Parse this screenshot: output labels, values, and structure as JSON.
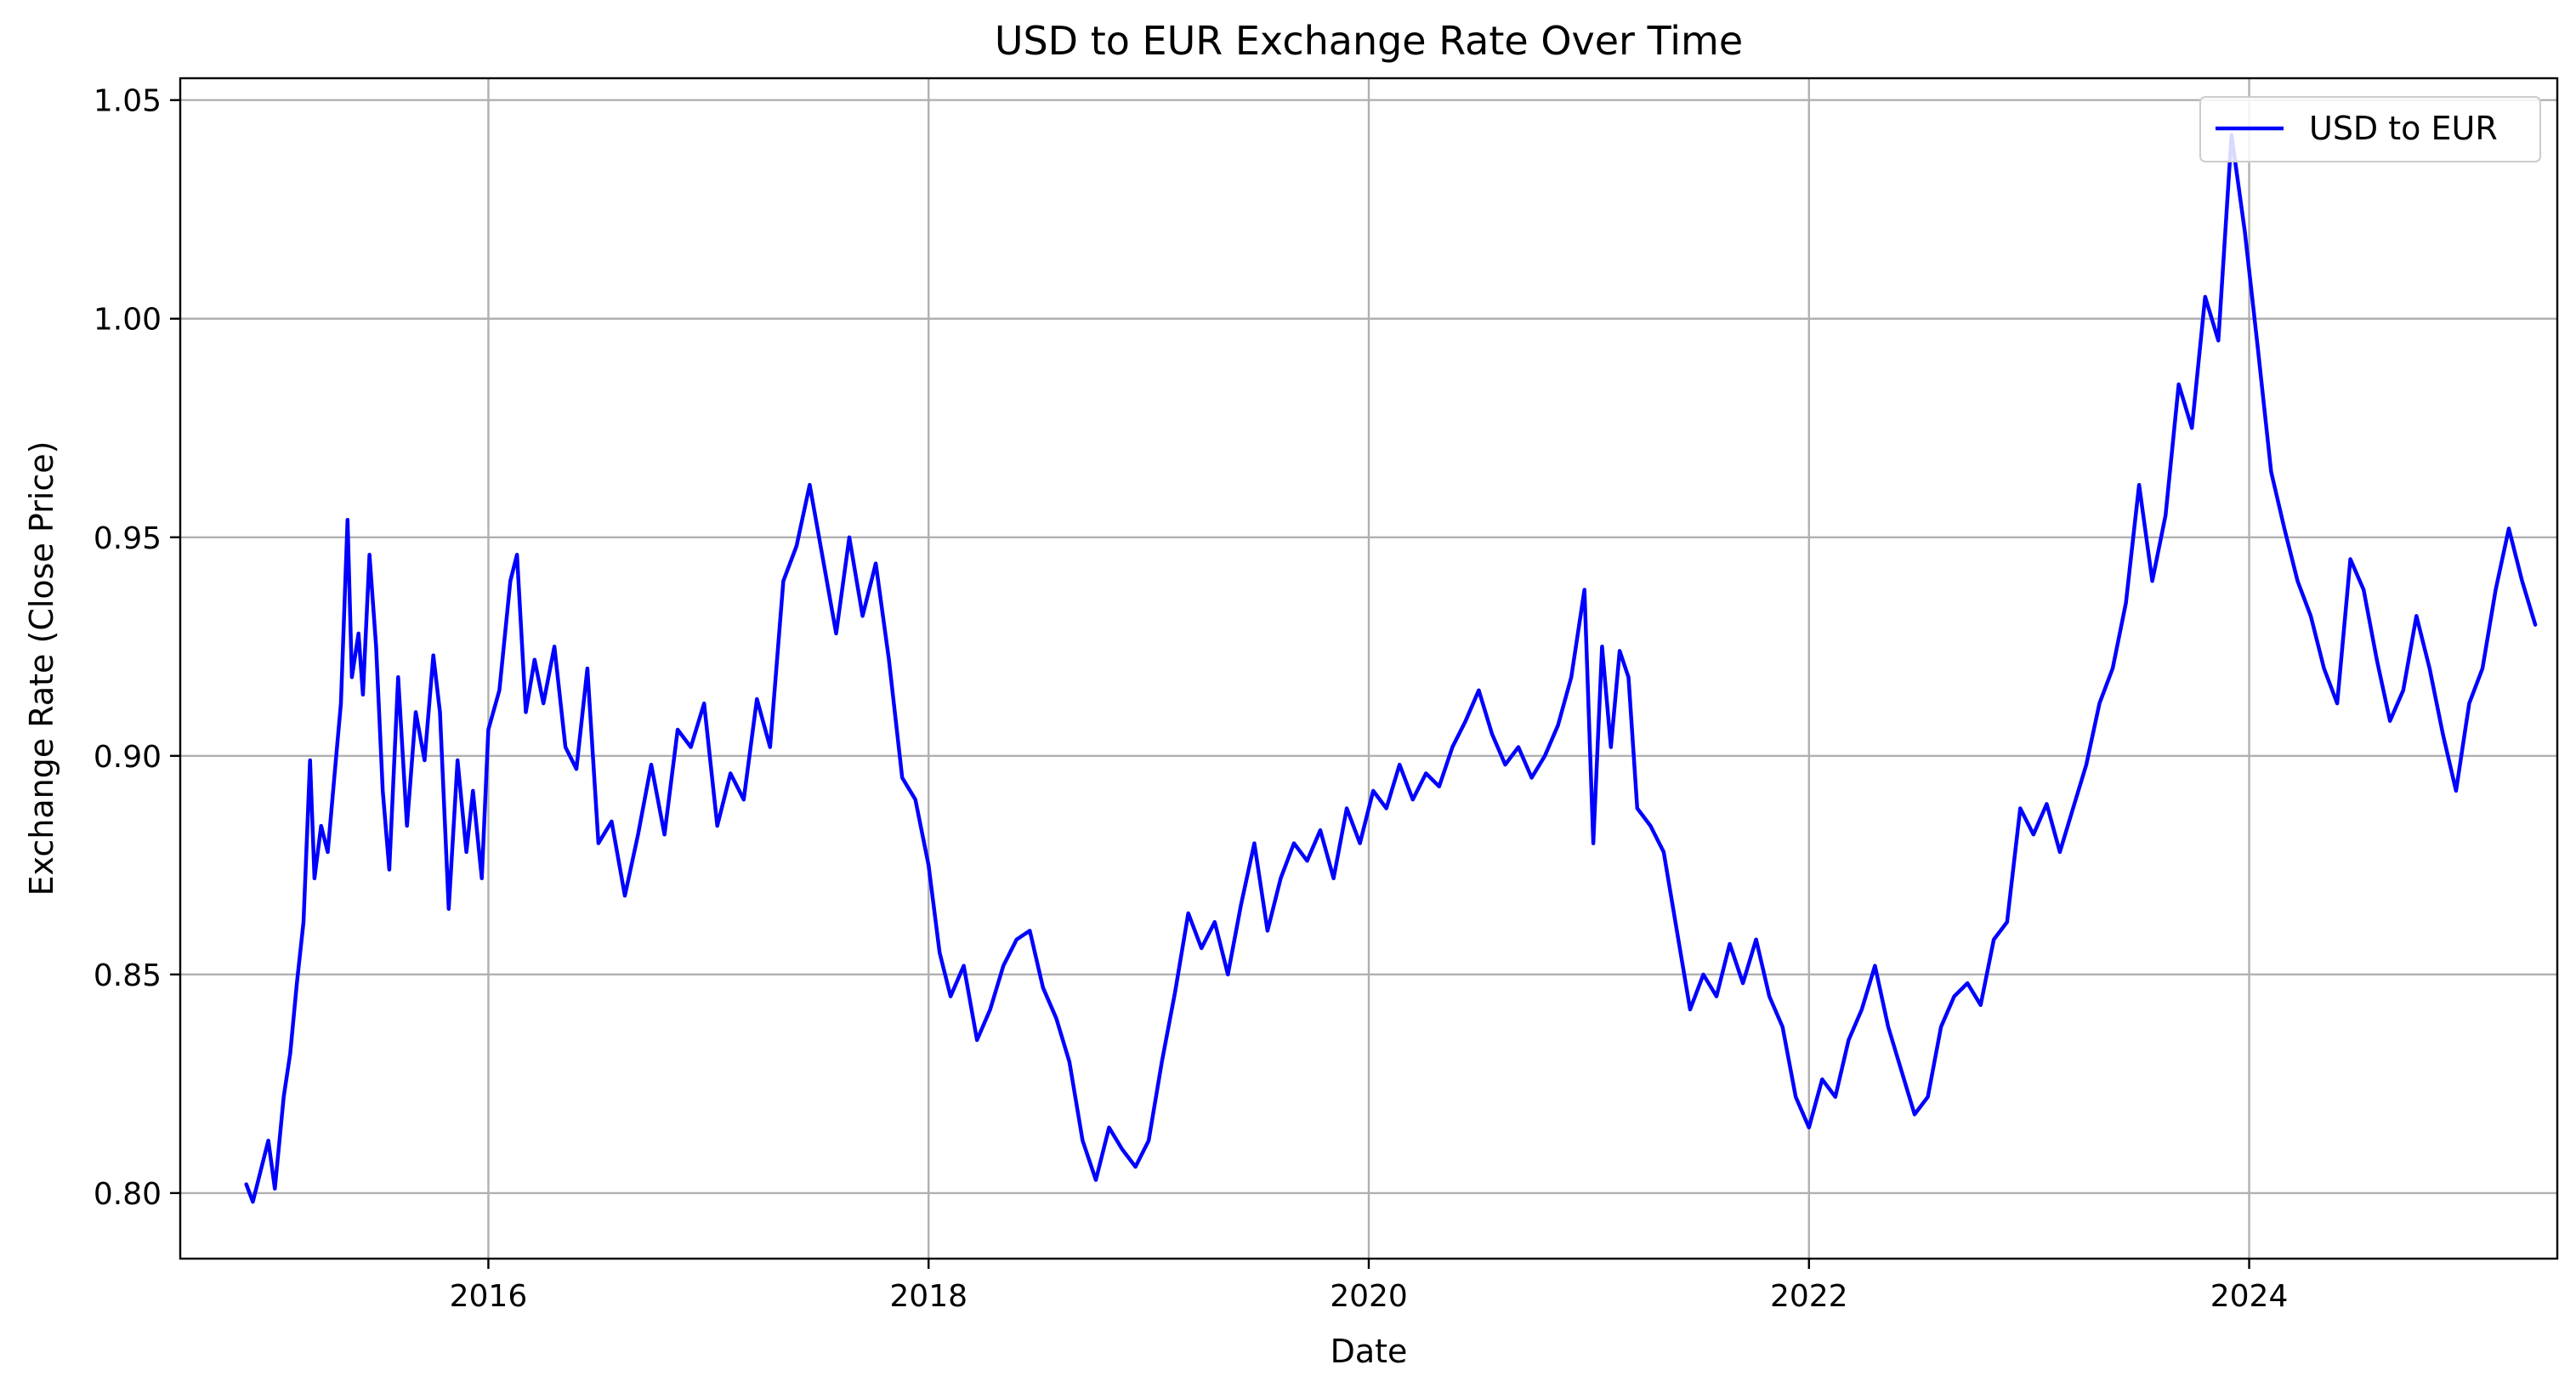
{
  "chart_data": {
    "type": "line",
    "title": "USD to EUR Exchange Rate Over Time",
    "xlabel": "Date",
    "ylabel": "Exchange Rate (Close Price)",
    "xlim": [
      2014.6,
      2025.4
    ],
    "ylim": [
      0.785,
      1.055
    ],
    "x_ticks": [
      2016,
      2018,
      2020,
      2022,
      2024
    ],
    "x_tick_labels": [
      "2016",
      "2018",
      "2020",
      "2022",
      "2024"
    ],
    "y_ticks": [
      0.8,
      0.85,
      0.9,
      0.95,
      1.0,
      1.05
    ],
    "y_tick_labels": [
      "0.80",
      "0.85",
      "0.90",
      "0.95",
      "1.00",
      "1.05"
    ],
    "grid": true,
    "legend": "top-right",
    "colors": {
      "line": "#0000ff"
    },
    "series": [
      {
        "name": "USD to EUR",
        "points": [
          [
            2014.9,
            0.802
          ],
          [
            2014.93,
            0.798
          ],
          [
            2014.97,
            0.806
          ],
          [
            2015.0,
            0.812
          ],
          [
            2015.03,
            0.801
          ],
          [
            2015.07,
            0.822
          ],
          [
            2015.1,
            0.832
          ],
          [
            2015.13,
            0.848
          ],
          [
            2015.16,
            0.862
          ],
          [
            2015.19,
            0.899
          ],
          [
            2015.21,
            0.872
          ],
          [
            2015.24,
            0.884
          ],
          [
            2015.27,
            0.878
          ],
          [
            2015.3,
            0.895
          ],
          [
            2015.33,
            0.912
          ],
          [
            2015.36,
            0.954
          ],
          [
            2015.38,
            0.918
          ],
          [
            2015.41,
            0.928
          ],
          [
            2015.43,
            0.914
          ],
          [
            2015.46,
            0.946
          ],
          [
            2015.49,
            0.925
          ],
          [
            2015.52,
            0.892
          ],
          [
            2015.55,
            0.874
          ],
          [
            2015.59,
            0.918
          ],
          [
            2015.63,
            0.884
          ],
          [
            2015.67,
            0.91
          ],
          [
            2015.71,
            0.899
          ],
          [
            2015.75,
            0.923
          ],
          [
            2015.78,
            0.91
          ],
          [
            2015.82,
            0.865
          ],
          [
            2015.86,
            0.899
          ],
          [
            2015.9,
            0.878
          ],
          [
            2015.93,
            0.892
          ],
          [
            2015.97,
            0.872
          ],
          [
            2016.0,
            0.906
          ],
          [
            2016.05,
            0.915
          ],
          [
            2016.1,
            0.94
          ],
          [
            2016.13,
            0.946
          ],
          [
            2016.17,
            0.91
          ],
          [
            2016.21,
            0.922
          ],
          [
            2016.25,
            0.912
          ],
          [
            2016.3,
            0.925
          ],
          [
            2016.35,
            0.902
          ],
          [
            2016.4,
            0.897
          ],
          [
            2016.45,
            0.92
          ],
          [
            2016.5,
            0.88
          ],
          [
            2016.56,
            0.885
          ],
          [
            2016.62,
            0.868
          ],
          [
            2016.68,
            0.882
          ],
          [
            2016.74,
            0.898
          ],
          [
            2016.8,
            0.882
          ],
          [
            2016.86,
            0.906
          ],
          [
            2016.92,
            0.902
          ],
          [
            2016.98,
            0.912
          ],
          [
            2017.04,
            0.884
          ],
          [
            2017.1,
            0.896
          ],
          [
            2017.16,
            0.89
          ],
          [
            2017.22,
            0.913
          ],
          [
            2017.28,
            0.902
          ],
          [
            2017.34,
            0.94
          ],
          [
            2017.4,
            0.948
          ],
          [
            2017.46,
            0.962
          ],
          [
            2017.52,
            0.945
          ],
          [
            2017.58,
            0.928
          ],
          [
            2017.64,
            0.95
          ],
          [
            2017.7,
            0.932
          ],
          [
            2017.76,
            0.944
          ],
          [
            2017.82,
            0.922
          ],
          [
            2017.88,
            0.895
          ],
          [
            2017.94,
            0.89
          ],
          [
            2018.0,
            0.875
          ],
          [
            2018.05,
            0.855
          ],
          [
            2018.1,
            0.845
          ],
          [
            2018.16,
            0.852
          ],
          [
            2018.22,
            0.835
          ],
          [
            2018.28,
            0.842
          ],
          [
            2018.34,
            0.852
          ],
          [
            2018.4,
            0.858
          ],
          [
            2018.46,
            0.86
          ],
          [
            2018.52,
            0.847
          ],
          [
            2018.58,
            0.84
          ],
          [
            2018.64,
            0.83
          ],
          [
            2018.7,
            0.812
          ],
          [
            2018.76,
            0.803
          ],
          [
            2018.82,
            0.815
          ],
          [
            2018.88,
            0.81
          ],
          [
            2018.94,
            0.806
          ],
          [
            2019.0,
            0.812
          ],
          [
            2019.06,
            0.83
          ],
          [
            2019.12,
            0.846
          ],
          [
            2019.18,
            0.864
          ],
          [
            2019.24,
            0.856
          ],
          [
            2019.3,
            0.862
          ],
          [
            2019.36,
            0.85
          ],
          [
            2019.42,
            0.866
          ],
          [
            2019.48,
            0.88
          ],
          [
            2019.54,
            0.86
          ],
          [
            2019.6,
            0.872
          ],
          [
            2019.66,
            0.88
          ],
          [
            2019.72,
            0.876
          ],
          [
            2019.78,
            0.883
          ],
          [
            2019.84,
            0.872
          ],
          [
            2019.9,
            0.888
          ],
          [
            2019.96,
            0.88
          ],
          [
            2020.02,
            0.892
          ],
          [
            2020.08,
            0.888
          ],
          [
            2020.14,
            0.898
          ],
          [
            2020.2,
            0.89
          ],
          [
            2020.26,
            0.896
          ],
          [
            2020.32,
            0.893
          ],
          [
            2020.38,
            0.902
          ],
          [
            2020.44,
            0.908
          ],
          [
            2020.5,
            0.915
          ],
          [
            2020.56,
            0.905
          ],
          [
            2020.62,
            0.898
          ],
          [
            2020.68,
            0.902
          ],
          [
            2020.74,
            0.895
          ],
          [
            2020.8,
            0.9
          ],
          [
            2020.86,
            0.907
          ],
          [
            2020.92,
            0.918
          ],
          [
            2020.98,
            0.938
          ],
          [
            2021.02,
            0.88
          ],
          [
            2021.06,
            0.925
          ],
          [
            2021.1,
            0.902
          ],
          [
            2021.14,
            0.924
          ],
          [
            2021.18,
            0.918
          ],
          [
            2021.22,
            0.888
          ],
          [
            2021.28,
            0.884
          ],
          [
            2021.34,
            0.878
          ],
          [
            2021.4,
            0.86
          ],
          [
            2021.46,
            0.842
          ],
          [
            2021.52,
            0.85
          ],
          [
            2021.58,
            0.845
          ],
          [
            2021.64,
            0.857
          ],
          [
            2021.7,
            0.848
          ],
          [
            2021.76,
            0.858
          ],
          [
            2021.82,
            0.845
          ],
          [
            2021.88,
            0.838
          ],
          [
            2021.94,
            0.822
          ],
          [
            2022.0,
            0.815
          ],
          [
            2022.06,
            0.826
          ],
          [
            2022.12,
            0.822
          ],
          [
            2022.18,
            0.835
          ],
          [
            2022.24,
            0.842
          ],
          [
            2022.3,
            0.852
          ],
          [
            2022.36,
            0.838
          ],
          [
            2022.42,
            0.828
          ],
          [
            2022.48,
            0.818
          ],
          [
            2022.54,
            0.822
          ],
          [
            2022.6,
            0.838
          ],
          [
            2022.66,
            0.845
          ],
          [
            2022.72,
            0.848
          ],
          [
            2022.78,
            0.843
          ],
          [
            2022.84,
            0.858
          ],
          [
            2022.9,
            0.862
          ],
          [
            2022.96,
            0.888
          ],
          [
            2023.02,
            0.882
          ],
          [
            2023.08,
            0.889
          ],
          [
            2023.14,
            0.878
          ],
          [
            2023.2,
            0.888
          ],
          [
            2023.26,
            0.898
          ],
          [
            2023.32,
            0.912
          ],
          [
            2023.38,
            0.92
          ],
          [
            2023.44,
            0.935
          ],
          [
            2023.5,
            0.962
          ],
          [
            2023.56,
            0.94
          ],
          [
            2023.62,
            0.955
          ],
          [
            2023.68,
            0.985
          ],
          [
            2023.74,
            0.975
          ],
          [
            2023.8,
            1.005
          ],
          [
            2023.86,
            0.995
          ],
          [
            2023.92,
            1.042
          ],
          [
            2023.98,
            1.02
          ],
          [
            2024.04,
            0.993
          ],
          [
            2024.1,
            0.965
          ],
          [
            2024.16,
            0.952
          ],
          [
            2024.22,
            0.94
          ],
          [
            2024.28,
            0.932
          ],
          [
            2024.34,
            0.92
          ],
          [
            2024.4,
            0.912
          ],
          [
            2024.46,
            0.945
          ],
          [
            2024.52,
            0.938
          ],
          [
            2024.58,
            0.922
          ],
          [
            2024.64,
            0.908
          ],
          [
            2024.7,
            0.915
          ],
          [
            2024.76,
            0.932
          ],
          [
            2024.82,
            0.92
          ],
          [
            2024.88,
            0.905
          ],
          [
            2024.94,
            0.892
          ],
          [
            2025.0,
            0.912
          ],
          [
            2025.06,
            0.92
          ],
          [
            2025.12,
            0.938
          ],
          [
            2025.18,
            0.952
          ],
          [
            2025.24,
            0.94
          ],
          [
            2025.3,
            0.93
          ]
        ]
      }
    ]
  }
}
